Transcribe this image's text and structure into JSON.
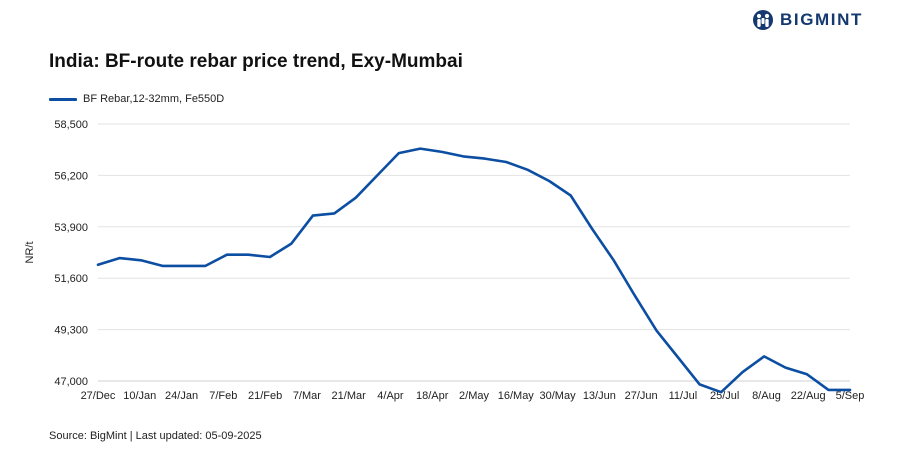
{
  "brand": {
    "name": "BIGMINT",
    "color": "#14386f"
  },
  "chart_data": {
    "type": "line",
    "title": "India: BF-route rebar price trend, Exy-Mumbai",
    "ylabel": "NR/t",
    "xlabel": "",
    "ylim": [
      47000,
      58500
    ],
    "yticks": [
      47000,
      49300,
      51600,
      53900,
      56200,
      58500
    ],
    "ytick_labels": [
      "47,000",
      "49,300",
      "51,600",
      "53,900",
      "56,200",
      "58,500"
    ],
    "grid": true,
    "legend_position": "top-left",
    "x_tick_labels": [
      "27/Dec",
      "10/Jan",
      "24/Jan",
      "7/Feb",
      "21/Feb",
      "7/Mar",
      "21/Mar",
      "4/Apr",
      "18/Apr",
      "2/May",
      "16/May",
      "30/May",
      "13/Jun",
      "27/Jun",
      "11/Jul",
      "25/Jul",
      "8/Aug",
      "22/Aug",
      "5/Sep"
    ],
    "series": [
      {
        "name": "BF Rebar,12-32mm, Fe550D",
        "color": "#0b4ea2",
        "values": [
          52200,
          52500,
          52400,
          52150,
          52150,
          52150,
          52650,
          52650,
          52550,
          53150,
          54400,
          54500,
          55200,
          56200,
          57200,
          57400,
          57250,
          57050,
          56950,
          56800,
          56450,
          55950,
          55300,
          53800,
          52400,
          50800,
          49250,
          48050,
          46850,
          46500,
          47400,
          48100,
          47600,
          47300,
          46600,
          46600
        ]
      }
    ]
  },
  "legend": {
    "label": "BF Rebar,12-32mm, Fe550D"
  },
  "source": "Source: BigMint | Last updated: 05-09-2025"
}
